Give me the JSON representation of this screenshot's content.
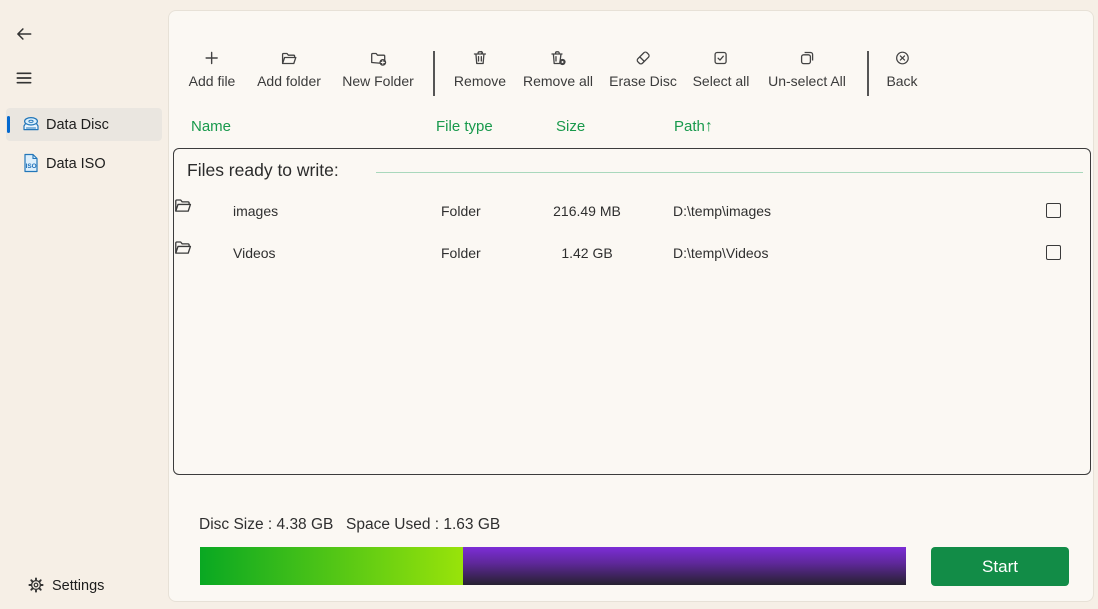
{
  "sidebar": {
    "nav": [
      {
        "label": "Data Disc",
        "icon": "disc-drive-icon",
        "selected": true
      },
      {
        "label": "Data ISO",
        "icon": "iso-file-icon",
        "selected": false
      }
    ],
    "settings_label": "Settings"
  },
  "toolbar": {
    "items": [
      {
        "label": "Add file",
        "icon": "add-icon"
      },
      {
        "label": "Add folder",
        "icon": "open-folder-icon"
      },
      {
        "label": "New Folder",
        "icon": "new-folder-icon"
      },
      {
        "label": "Remove",
        "icon": "trash-icon"
      },
      {
        "label": "Remove all",
        "icon": "trash-all-icon"
      },
      {
        "label": "Erase Disc",
        "icon": "eraser-icon"
      },
      {
        "label": "Select all",
        "icon": "select-all-icon"
      },
      {
        "label": "Un-select All",
        "icon": "unselect-all-icon"
      },
      {
        "label": "Back",
        "icon": "back-icon"
      }
    ]
  },
  "columns": {
    "name": "Name",
    "file_type": "File type",
    "size": "Size",
    "path": "Path",
    "sort_arrow": "↑"
  },
  "file_list": {
    "group_title": "Files ready to write:",
    "rows": [
      {
        "name": "images",
        "type": "Folder",
        "size": "216.49 MB",
        "path": "D:\\temp\\images",
        "checked": false
      },
      {
        "name": "Videos",
        "type": "Folder",
        "size": "1.42 GB",
        "path": "D:\\temp\\Videos",
        "checked": false
      }
    ]
  },
  "status": {
    "disc_size_label": "Disc Size : 4.38 GB",
    "space_used_label": "Space Used : 1.63 GB",
    "used_percent": 37.3
  },
  "actions": {
    "start_label": "Start"
  },
  "colors": {
    "accent_blue": "#0569cf",
    "header_green": "#18994c",
    "bar_used_start": "#09a822",
    "bar_used_end": "#99e30a",
    "bar_free_top": "#7c2dd6",
    "bar_free_bottom": "#262130",
    "start_button": "#128c47",
    "sidebar_bg": "#f6efe6",
    "panel_bg": "#fbf8f3"
  }
}
